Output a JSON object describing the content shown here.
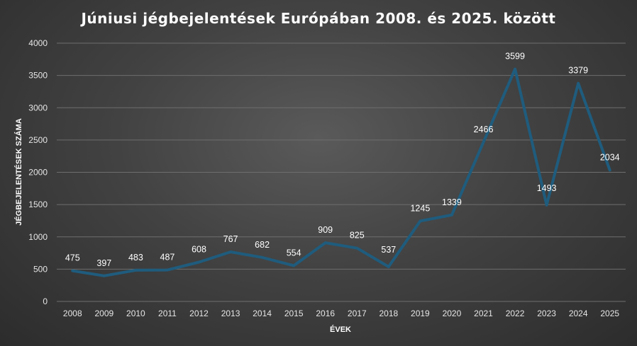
{
  "chart_data": {
    "type": "line",
    "title": "Júniusi jégbejelentések Európában 2008. és 2025. között",
    "xlabel": "ÉVEK",
    "ylabel": "JÉGBEJELENTÉSEK SZÁMA",
    "categories": [
      "2008",
      "2009",
      "2010",
      "2011",
      "2012",
      "2013",
      "2014",
      "2015",
      "2016",
      "2017",
      "2018",
      "2019",
      "2020",
      "2021",
      "2022",
      "2023",
      "2024",
      "2025"
    ],
    "values": [
      475,
      397,
      483,
      487,
      608,
      767,
      682,
      554,
      909,
      825,
      537,
      1245,
      1339,
      2466,
      3599,
      1493,
      3379,
      2034
    ],
    "ylim": [
      0,
      4000
    ],
    "yticks": [
      "0",
      "500",
      "1000",
      "1500",
      "2000",
      "2500",
      "3000",
      "3500",
      "4000"
    ],
    "grid": true,
    "legend": "none",
    "color": "#1f5c7d"
  }
}
